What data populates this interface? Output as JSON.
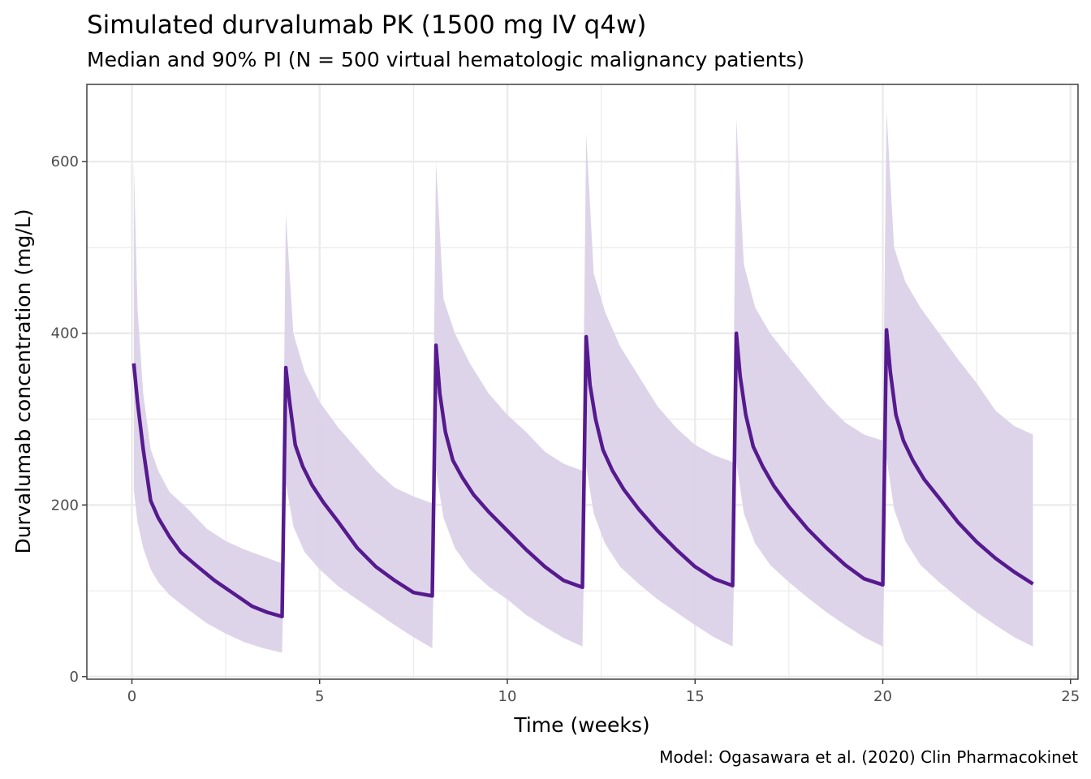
{
  "chart_data": {
    "type": "line",
    "title": "Simulated durvalumab PK (1500 mg IV q4w)",
    "subtitle": "Median and 90% PI (N = 500 virtual hematologic malignancy patients)",
    "caption": "Model: Ogasawara et al. (2020) Clin Pharmacokinet",
    "xlabel": "Time (weeks)",
    "ylabel": "Durvalumab concentration (mg/L)",
    "xlim": [
      -1.2,
      25.2
    ],
    "ylim": [
      -3,
      690
    ],
    "x_ticks": [
      0,
      5,
      10,
      15,
      20,
      25
    ],
    "x_tick_labels": [
      "0",
      "5",
      "10",
      "15",
      "20",
      "25"
    ],
    "x_minor": [
      2.5,
      7.5,
      12.5,
      17.5,
      22.5
    ],
    "y_ticks": [
      0,
      200,
      400,
      600
    ],
    "y_tick_labels": [
      "0",
      "200",
      "400",
      "600"
    ],
    "y_minor": [
      100,
      300,
      500
    ],
    "grid": true,
    "legend": "none",
    "colors": {
      "median": "#561A8F",
      "band": "#DCD2E8"
    },
    "series": [
      {
        "name": "Median",
        "x": [
          0.05,
          0.15,
          0.3,
          0.5,
          0.7,
          1.0,
          1.3,
          1.7,
          2.2,
          2.7,
          3.2,
          3.6,
          4.0,
          4.1,
          4.2,
          4.35,
          4.55,
          4.8,
          5.1,
          5.5,
          6.0,
          6.5,
          7.0,
          7.5,
          8.0,
          8.1,
          8.2,
          8.35,
          8.55,
          8.8,
          9.1,
          9.5,
          10.0,
          10.5,
          11.0,
          11.5,
          12.0,
          12.1,
          12.2,
          12.35,
          12.55,
          12.8,
          13.1,
          13.5,
          14.0,
          14.5,
          15.0,
          15.5,
          16.0,
          16.1,
          16.2,
          16.35,
          16.55,
          16.8,
          17.1,
          17.5,
          18.0,
          18.5,
          19.0,
          19.5,
          20.0,
          20.1,
          20.2,
          20.35,
          20.55,
          20.8,
          21.1,
          21.5,
          22.0,
          22.5,
          23.0,
          23.5,
          24.0
        ],
        "values": [
          365,
          320,
          265,
          205,
          185,
          163,
          145,
          130,
          112,
          97,
          82,
          75,
          70,
          360,
          320,
          270,
          245,
          223,
          203,
          180,
          150,
          128,
          112,
          98,
          94,
          386,
          330,
          285,
          252,
          232,
          212,
          192,
          170,
          148,
          128,
          112,
          104,
          396,
          340,
          300,
          264,
          240,
          218,
          195,
          170,
          148,
          128,
          114,
          106,
          400,
          350,
          305,
          268,
          245,
          222,
          198,
          172,
          150,
          130,
          114,
          107,
          404,
          355,
          305,
          275,
          252,
          230,
          208,
          180,
          157,
          138,
          122,
          108
        ]
      },
      {
        "name": "90% PI upper",
        "x": [
          0.05,
          0.15,
          0.3,
          0.5,
          0.7,
          1.0,
          1.5,
          2.0,
          2.5,
          3.0,
          3.5,
          4.0,
          4.1,
          4.3,
          4.6,
          5.0,
          5.5,
          6.0,
          6.5,
          7.0,
          7.5,
          8.0,
          8.1,
          8.3,
          8.6,
          9.0,
          9.5,
          10.0,
          10.5,
          11.0,
          11.5,
          12.0,
          12.1,
          12.3,
          12.6,
          13.0,
          13.5,
          14.0,
          14.5,
          15.0,
          15.5,
          16.0,
          16.1,
          16.3,
          16.6,
          17.0,
          17.5,
          18.0,
          18.5,
          19.0,
          19.5,
          20.0,
          20.1,
          20.3,
          20.6,
          21.0,
          21.5,
          22.0,
          22.5,
          23.0,
          23.5,
          24.0
        ],
        "values": [
          600,
          430,
          330,
          265,
          240,
          215,
          195,
          172,
          158,
          148,
          140,
          132,
          540,
          400,
          355,
          320,
          290,
          265,
          240,
          220,
          210,
          202,
          600,
          440,
          400,
          365,
          330,
          305,
          285,
          262,
          248,
          240,
          632,
          470,
          425,
          385,
          350,
          315,
          290,
          270,
          258,
          250,
          650,
          480,
          430,
          400,
          372,
          345,
          318,
          296,
          282,
          275,
          660,
          500,
          460,
          430,
          400,
          370,
          342,
          310,
          292,
          282
        ]
      },
      {
        "name": "90% PI lower",
        "x": [
          0.05,
          0.15,
          0.3,
          0.5,
          0.7,
          1.0,
          1.5,
          2.0,
          2.5,
          3.0,
          3.5,
          4.0,
          4.1,
          4.3,
          4.6,
          5.0,
          5.5,
          6.0,
          6.5,
          7.0,
          7.5,
          8.0,
          8.1,
          8.3,
          8.6,
          9.0,
          9.5,
          10.0,
          10.5,
          11.0,
          11.5,
          12.0,
          12.1,
          12.3,
          12.6,
          13.0,
          13.5,
          14.0,
          14.5,
          15.0,
          15.5,
          16.0,
          16.1,
          16.3,
          16.6,
          17.0,
          17.5,
          18.0,
          18.5,
          19.0,
          19.5,
          20.0,
          20.1,
          20.3,
          20.6,
          21.0,
          21.5,
          22.0,
          22.5,
          23.0,
          23.5,
          24.0
        ],
        "values": [
          218,
          180,
          150,
          125,
          110,
          95,
          78,
          62,
          50,
          40,
          33,
          28,
          225,
          175,
          145,
          125,
          105,
          90,
          75,
          60,
          46,
          33,
          240,
          185,
          150,
          125,
          105,
          90,
          72,
          58,
          45,
          35,
          245,
          190,
          155,
          128,
          108,
          90,
          75,
          60,
          46,
          35,
          250,
          190,
          155,
          130,
          110,
          92,
          75,
          60,
          46,
          35,
          255,
          195,
          158,
          130,
          110,
          92,
          75,
          60,
          46,
          35
        ]
      }
    ]
  }
}
